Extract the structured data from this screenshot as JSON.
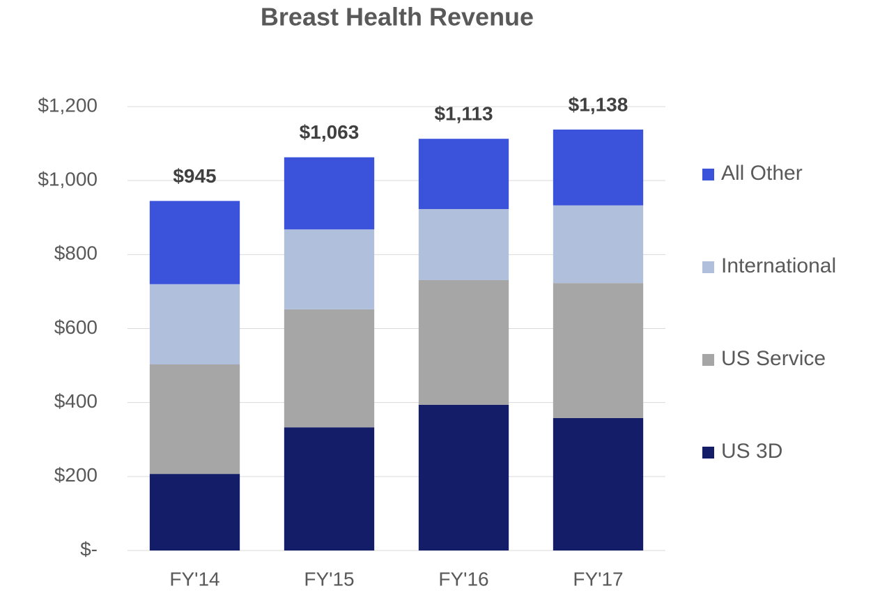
{
  "chart_data": {
    "type": "stacked_bar",
    "title": "Breast Health Revenue",
    "categories": [
      "FY'14",
      "FY'15",
      "FY'16",
      "FY'17"
    ],
    "series": [
      {
        "name": "US 3D",
        "color": "#141e68",
        "values": [
          207,
          333,
          394,
          358
        ]
      },
      {
        "name": "US Service",
        "color": "#a6a6a6",
        "values": [
          296,
          319,
          337,
          365
        ]
      },
      {
        "name": "International",
        "color": "#b0c0dc",
        "values": [
          217,
          216,
          192,
          210
        ]
      },
      {
        "name": "All Other",
        "color": "#3b52db",
        "values": [
          225,
          195,
          190,
          205
        ]
      }
    ],
    "totals": [
      945,
      1063,
      1113,
      1138
    ],
    "total_labels": [
      "$945",
      "$1,063",
      "$1,113",
      "$1,138"
    ],
    "ylim": [
      0,
      1200
    ],
    "yticks": [
      {
        "value": 0,
        "label": "$-"
      },
      {
        "value": 200,
        "label": "$200"
      },
      {
        "value": 400,
        "label": "$400"
      },
      {
        "value": 600,
        "label": "$600"
      },
      {
        "value": 800,
        "label": "$800"
      },
      {
        "value": 1000,
        "label": "$1,000"
      },
      {
        "value": 1200,
        "label": "$1,200"
      }
    ],
    "grid": true,
    "legend": "right"
  }
}
